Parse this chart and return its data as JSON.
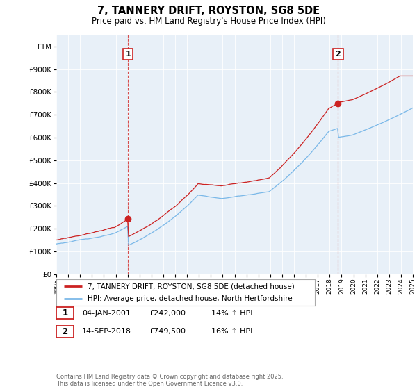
{
  "title": "7, TANNERY DRIFT, ROYSTON, SG8 5DE",
  "subtitle": "Price paid vs. HM Land Registry's House Price Index (HPI)",
  "legend_line1": "7, TANNERY DRIFT, ROYSTON, SG8 5DE (detached house)",
  "legend_line2": "HPI: Average price, detached house, North Hertfordshire",
  "annotation1_label": "1",
  "annotation1_date": "04-JAN-2001",
  "annotation1_price": "£242,000",
  "annotation1_hpi": "14% ↑ HPI",
  "annotation2_label": "2",
  "annotation2_date": "14-SEP-2018",
  "annotation2_price": "£749,500",
  "annotation2_hpi": "16% ↑ HPI",
  "footer": "Contains HM Land Registry data © Crown copyright and database right 2025.\nThis data is licensed under the Open Government Licence v3.0.",
  "hpi_color": "#7ab8e8",
  "price_color": "#cc2222",
  "vline_color": "#cc2222",
  "annotation_color": "#cc2222",
  "bg_color": "#ffffff",
  "plot_bg_color": "#e8f0f8",
  "grid_color": "#ffffff",
  "ylim_min": 0,
  "ylim_max": 1050000,
  "year_start": 1995,
  "year_end": 2025,
  "annotation1_year": 2001.04,
  "annotation2_year": 2018.71,
  "annotation1_value": 242000,
  "annotation2_value": 749500
}
